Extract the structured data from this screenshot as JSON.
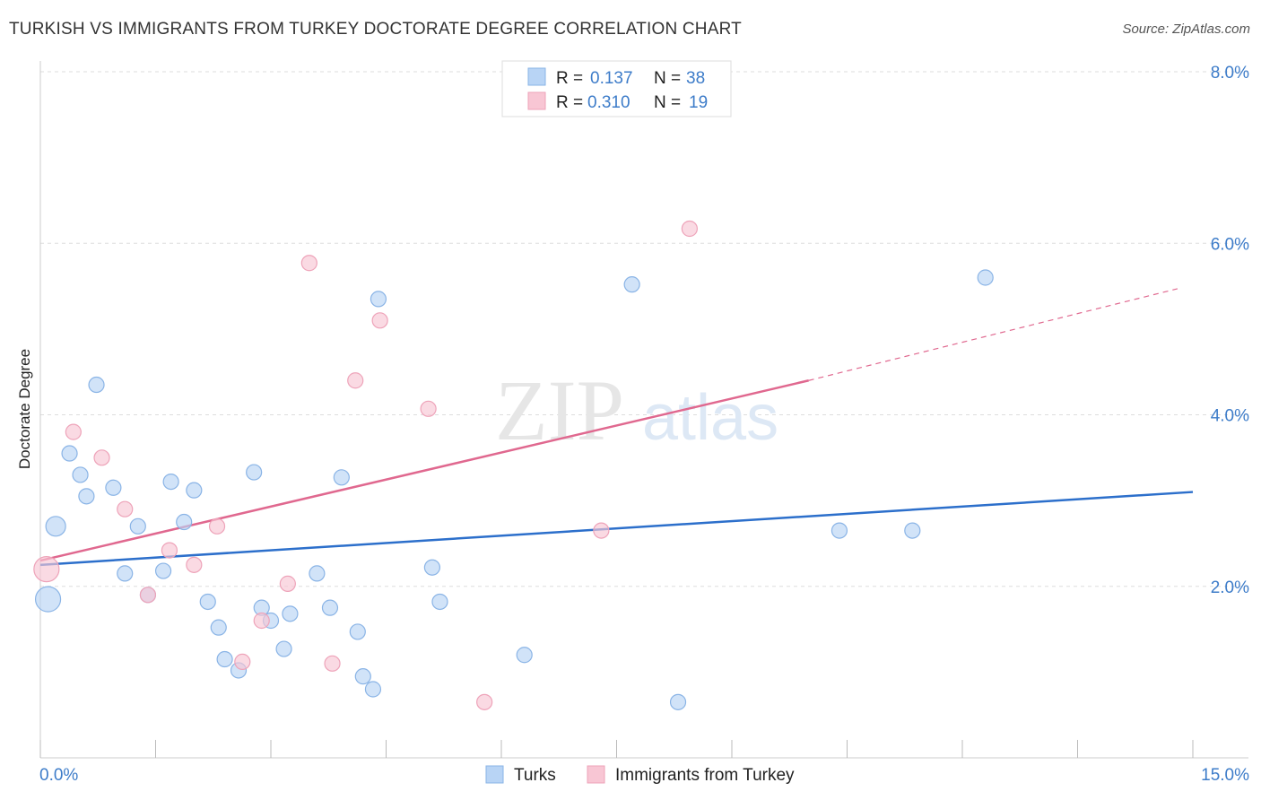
{
  "header": {
    "title": "TURKISH VS IMMIGRANTS FROM TURKEY DOCTORATE DEGREE CORRELATION CHART",
    "source": "Source: ZipAtlas.com"
  },
  "watermark": {
    "zip": "ZIP",
    "atlas": "atlas"
  },
  "stats_box": {
    "r_label": "R =",
    "n_label": "N =",
    "rows": [
      {
        "r": "0.137",
        "n": "38"
      },
      {
        "r": "0.310",
        "n": "19"
      }
    ]
  },
  "colors": {
    "turks_fill": "#b8d4f5",
    "turks_stroke": "#8ab4e6",
    "turks_line": "#2c6fcb",
    "immig_fill": "#f8c6d4",
    "immig_stroke": "#eea3b9",
    "immig_line": "#e0688f",
    "axis_text": "#3d7cc9",
    "grid": "#dddddd"
  },
  "chart_data": {
    "type": "scatter",
    "title": "TURKISH VS IMMIGRANTS FROM TURKEY DOCTORATE DEGREE CORRELATION CHART",
    "xlabel": "",
    "ylabel": "Doctorate Degree",
    "xlim": [
      0,
      15
    ],
    "ylim": [
      0,
      8
    ],
    "x_tick_labels": [
      "0.0%",
      "15.0%"
    ],
    "y_ticks": [
      2,
      4,
      6,
      8
    ],
    "y_tick_labels": [
      "2.0%",
      "4.0%",
      "6.0%",
      "8.0%"
    ],
    "grid": true,
    "legend_position": "bottom",
    "series": [
      {
        "name": "Turks",
        "color": "#b8d4f5",
        "points": [
          {
            "x": 0.1,
            "y": 1.85,
            "s": 14
          },
          {
            "x": 0.2,
            "y": 2.7,
            "s": 11
          },
          {
            "x": 0.38,
            "y": 3.55
          },
          {
            "x": 0.52,
            "y": 3.3
          },
          {
            "x": 0.6,
            "y": 3.05
          },
          {
            "x": 0.73,
            "y": 4.35
          },
          {
            "x": 0.95,
            "y": 3.15
          },
          {
            "x": 1.1,
            "y": 2.15
          },
          {
            "x": 1.27,
            "y": 2.7
          },
          {
            "x": 1.4,
            "y": 1.9
          },
          {
            "x": 1.6,
            "y": 2.18
          },
          {
            "x": 1.7,
            "y": 3.22
          },
          {
            "x": 1.87,
            "y": 2.75
          },
          {
            "x": 2.0,
            "y": 3.12
          },
          {
            "x": 2.18,
            "y": 1.82
          },
          {
            "x": 2.32,
            "y": 1.52
          },
          {
            "x": 2.4,
            "y": 1.15
          },
          {
            "x": 2.58,
            "y": 1.02
          },
          {
            "x": 2.78,
            "y": 3.33
          },
          {
            "x": 2.88,
            "y": 1.75
          },
          {
            "x": 3.0,
            "y": 1.6
          },
          {
            "x": 3.17,
            "y": 1.27
          },
          {
            "x": 3.25,
            "y": 1.68
          },
          {
            "x": 3.6,
            "y": 2.15
          },
          {
            "x": 3.77,
            "y": 1.75
          },
          {
            "x": 3.92,
            "y": 3.27
          },
          {
            "x": 4.13,
            "y": 1.47
          },
          {
            "x": 4.2,
            "y": 0.95
          },
          {
            "x": 4.33,
            "y": 0.8
          },
          {
            "x": 4.4,
            "y": 5.35
          },
          {
            "x": 5.1,
            "y": 2.22
          },
          {
            "x": 5.2,
            "y": 1.82
          },
          {
            "x": 6.3,
            "y": 1.2
          },
          {
            "x": 7.7,
            "y": 5.52
          },
          {
            "x": 8.3,
            "y": 0.65
          },
          {
            "x": 10.4,
            "y": 2.65
          },
          {
            "x": 11.35,
            "y": 2.65
          },
          {
            "x": 12.3,
            "y": 5.6
          }
        ],
        "trend": {
          "x": [
            0,
            15
          ],
          "y": [
            2.25,
            3.1
          ]
        }
      },
      {
        "name": "Immigrants from Turkey",
        "color": "#f8c6d4",
        "points": [
          {
            "x": 0.08,
            "y": 2.2,
            "s": 14
          },
          {
            "x": 0.43,
            "y": 3.8
          },
          {
            "x": 0.8,
            "y": 3.5
          },
          {
            "x": 1.1,
            "y": 2.9
          },
          {
            "x": 1.4,
            "y": 1.9
          },
          {
            "x": 1.68,
            "y": 2.42
          },
          {
            "x": 2.0,
            "y": 2.25
          },
          {
            "x": 2.3,
            "y": 2.7
          },
          {
            "x": 2.63,
            "y": 1.12
          },
          {
            "x": 2.88,
            "y": 1.6
          },
          {
            "x": 3.22,
            "y": 2.03
          },
          {
            "x": 3.5,
            "y": 5.77
          },
          {
            "x": 3.8,
            "y": 1.1
          },
          {
            "x": 4.1,
            "y": 4.4
          },
          {
            "x": 4.42,
            "y": 5.1
          },
          {
            "x": 5.05,
            "y": 4.07
          },
          {
            "x": 5.78,
            "y": 0.65
          },
          {
            "x": 7.3,
            "y": 2.65
          },
          {
            "x": 8.45,
            "y": 6.17
          }
        ],
        "trend": {
          "x": [
            0,
            10.0
          ],
          "y": [
            2.3,
            4.4
          ]
        },
        "trend_dashed": {
          "x": [
            10.0,
            14.8
          ],
          "y": [
            4.4,
            5.47
          ]
        }
      }
    ]
  }
}
